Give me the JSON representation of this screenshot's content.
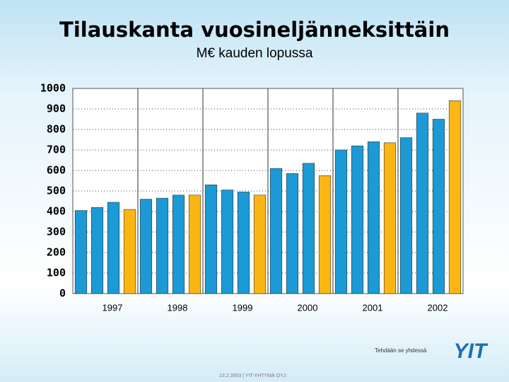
{
  "page": {
    "tagline": "Tehdään se yhdessä",
    "logo": "YIT",
    "footer": "13.2.2003 | YIT-YHTYMÄ OYJ"
  },
  "chart_data": {
    "type": "bar",
    "title": "Tilauskanta vuosineljänneksittäin",
    "subtitle": "M€ kauden lopussa",
    "categories": [
      null,
      null,
      null,
      null,
      null,
      null,
      null,
      null,
      null,
      null,
      null,
      null,
      null,
      null,
      null,
      null,
      null,
      null,
      null,
      null,
      null,
      null,
      null,
      null
    ],
    "values": [
      405,
      420,
      445,
      410,
      460,
      465,
      480,
      480,
      530,
      505,
      495,
      480,
      610,
      585,
      635,
      575,
      700,
      720,
      740,
      735,
      760,
      880,
      850,
      940
    ],
    "colors": [
      "#1b9ad6",
      "#1b9ad6",
      "#1b9ad6",
      "#fbb614",
      "#1b9ad6",
      "#1b9ad6",
      "#1b9ad6",
      "#fbb614",
      "#1b9ad6",
      "#1b9ad6",
      "#1b9ad6",
      "#fbb614",
      "#1b9ad6",
      "#1b9ad6",
      "#1b9ad6",
      "#fbb614",
      "#1b9ad6",
      "#1b9ad6",
      "#1b9ad6",
      "#fbb614",
      "#1b9ad6",
      "#1b9ad6",
      "#1b9ad6",
      "#fbb614"
    ],
    "group_labels": [
      "1997",
      "1998",
      "1999",
      "2000",
      "2001",
      "2002"
    ],
    "ylim": [
      0,
      1000
    ],
    "yticks": [
      0,
      100,
      200,
      300,
      400,
      500,
      600,
      700,
      800,
      900,
      1000
    ],
    "grid": true
  }
}
